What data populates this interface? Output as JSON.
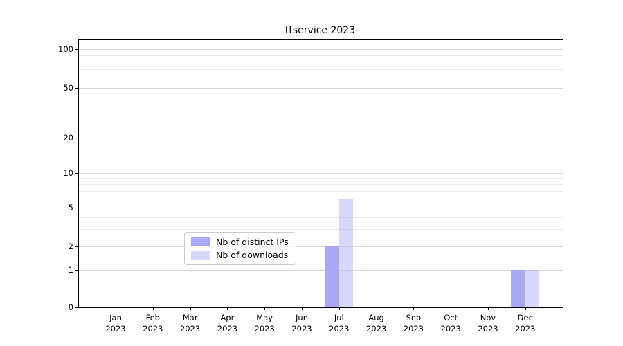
{
  "figure": {
    "title": "ttservice 2023"
  },
  "chart_data": {
    "type": "bar",
    "title": "ttservice 2023",
    "categories": [
      "Jan 2023",
      "Feb 2023",
      "Mar 2023",
      "Apr 2023",
      "May 2023",
      "Jun 2023",
      "Jul 2023",
      "Aug 2023",
      "Sep 2023",
      "Oct 2023",
      "Nov 2023",
      "Dec 2023"
    ],
    "x_tick_months": [
      "Jan",
      "Feb",
      "Mar",
      "Apr",
      "May",
      "Jun",
      "Jul",
      "Aug",
      "Sep",
      "Oct",
      "Nov",
      "Dec"
    ],
    "x_tick_year": "2023",
    "series": [
      {
        "name": "Nb of distinct IPs",
        "color": "#a8a8f5",
        "values": [
          0,
          0,
          0,
          0,
          0,
          0,
          2,
          0,
          0,
          0,
          0,
          1
        ]
      },
      {
        "name": "Nb of downloads",
        "color": "rgba(168,168,245,0.45)",
        "values": [
          0,
          0,
          0,
          0,
          0,
          0,
          6,
          0,
          0,
          0,
          0,
          1
        ]
      }
    ],
    "xlabel": "",
    "ylabel": "",
    "yscale": "symlog",
    "ylim": [
      0,
      110
    ],
    "yticks_major": [
      0,
      1,
      2,
      5,
      10,
      20,
      50,
      100
    ],
    "yticks_minor": [
      3,
      4,
      6,
      7,
      8,
      9,
      30,
      40,
      60,
      70,
      80,
      90
    ],
    "grid": "horizontal",
    "legend_position": "lower-center-inside"
  },
  "colors": {
    "grid_major": "#d5d5d5",
    "grid_minor": "#ebebeb",
    "axis": "#000000",
    "text": "#000000",
    "legend_border": "#cccccc",
    "legend_bg": "rgba(255,255,255,0.8)"
  }
}
